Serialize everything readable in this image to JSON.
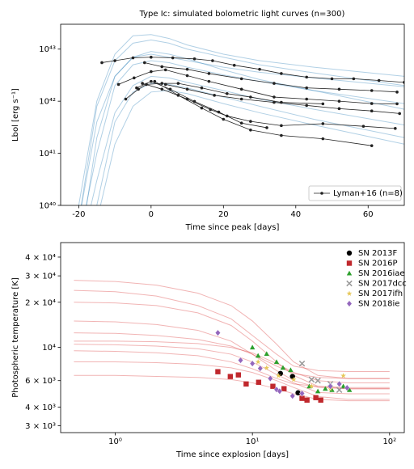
{
  "chart_data": [
    {
      "type": "line",
      "title": "Type Ic: simulated bolometric light curves (n=300)",
      "xlabel": "Time since peak [days]",
      "ylabel": "Lbol [erg s⁻¹]",
      "xlim": [
        -25,
        70
      ],
      "xticks": [
        -20,
        0,
        20,
        40,
        60
      ],
      "ylim": [
        1e+40,
        3e+43
      ],
      "ylog": true,
      "yticks": [
        {
          "value": 1e+40,
          "label": "10⁴⁰"
        },
        {
          "value": 1e+41,
          "label": "10⁴¹"
        },
        {
          "value": 1e+42,
          "label": "10⁴²"
        },
        {
          "value": 1e+43,
          "label": "10⁴³"
        }
      ],
      "legend": "lower right",
      "simulated": {
        "color": "#1f77b4",
        "x": [
          -20,
          -15,
          -10,
          -5,
          0,
          5,
          10,
          20,
          30,
          45,
          70
        ],
        "curves": [
          [
            5e+39,
            8e+41,
            6e+42,
            1.3e+43,
            1.5e+43,
            1.3e+43,
            1e+43,
            7e+42,
            5e+42,
            3.5e+42,
            2e+42
          ],
          [
            2e+39,
            1e+41,
            2e+42,
            5e+42,
            6e+42,
            5.5e+42,
            4.5e+42,
            3.2e+42,
            2.4e+42,
            1.6e+42,
            9e+41
          ],
          [
            1e+39,
            3e+40,
            6e+41,
            2e+42,
            3e+42,
            2.8e+42,
            2.3e+42,
            1.6e+42,
            1.1e+42,
            7e+41,
            3.5e+41
          ],
          [
            1e+38,
            5e+39,
            1.5e+41,
            8e+41,
            1.5e+42,
            1.6e+42,
            1.4e+42,
            9e+41,
            6e+41,
            3.5e+41,
            1.5e+41
          ],
          [
            1e+40,
            1e+42,
            8e+42,
            1.8e+43,
            1.9e+43,
            1.6e+43,
            1.2e+43,
            8e+42,
            6e+42,
            4.5e+42,
            3e+42
          ],
          [
            1e+39,
            2e+41,
            3e+42,
            7e+42,
            8e+42,
            7e+42,
            6e+42,
            4.5e+42,
            3.6e+42,
            2.8e+42,
            1.9e+42
          ],
          [
            1e+38,
            1e+40,
            4e+41,
            1.5e+42,
            2.2e+42,
            2.1e+42,
            1.8e+42,
            1.2e+42,
            8e+41,
            4.5e+41,
            2e+41
          ],
          [
            5e+39,
            4e+41,
            3e+42,
            7e+42,
            9e+42,
            8e+42,
            6.5e+42,
            4e+42,
            2.6e+42,
            1.6e+42,
            7e+41
          ]
        ]
      },
      "observed": {
        "name": "Lyman+16 (n=8)",
        "color": "#222222",
        "curves": [
          {
            "x": [
              -13.6,
              -10,
              -5,
              0,
              6,
              12,
              17,
              23,
              30,
              36,
              43,
              50,
              56,
              63,
              70
            ],
            "y": [
              5.5e+42,
              6e+42,
              6.8e+42,
              7e+42,
              6.8e+42,
              6.5e+42,
              6e+42,
              4.9e+42,
              4.1e+42,
              3.4e+42,
              2.9e+42,
              2.7e+42,
              2.7e+42,
              2.5e+42,
              2.3e+42
            ]
          },
          {
            "x": [
              -1.8,
              3,
              10,
              16,
              25,
              34,
              43,
              52,
              61,
              68
            ],
            "y": [
              5.5e+42,
              4.6e+42,
              4.1e+42,
              3.4e+42,
              2.7e+42,
              2.2e+42,
              1.8e+42,
              1.7e+42,
              1.6e+42,
              1.5e+42
            ]
          },
          {
            "x": [
              -9,
              -4.7,
              0,
              4,
              10,
              16,
              25,
              34,
              43,
              52,
              61,
              68
            ],
            "y": [
              2.1e+42,
              2.8e+42,
              3.7e+42,
              4e+42,
              3.1e+42,
              2.4e+42,
              1.7e+42,
              1.2e+42,
              1.1e+42,
              1e+42,
              9e+41,
              8.9e+41
            ]
          },
          {
            "x": [
              -7,
              -3.5,
              -1.3,
              3,
              7.5,
              14,
              21,
              27.5,
              36,
              47.5
            ],
            "y": [
              1.1e+42,
              1.7e+42,
              2.1e+42,
              2.2e+42,
              2.2e+42,
              1.8e+42,
              1.4e+42,
              1.2e+42,
              9.5e+41,
              8.9e+41
            ]
          },
          {
            "x": [
              -4,
              0,
              5.3,
              12,
              18.7,
              25,
              32
            ],
            "y": [
              1.8e+42,
              2.4e+42,
              1.7e+42,
              9.9e+41,
              6.2e+41,
              3.8e+41,
              3.1e+41
            ]
          },
          {
            "x": [
              -2.4,
              3,
              10,
              16.4,
              21,
              27.5,
              36,
              47.5,
              58.7,
              67.5
            ],
            "y": [
              2.2e+42,
              1.7e+42,
              1.1e+42,
              6.9e+41,
              5.2e+41,
              4.1e+41,
              3.4e+41,
              3.7e+41,
              3.3e+41,
              3e+41
            ]
          },
          {
            "x": [
              1,
              7.5,
              14,
              20,
              27.5,
              36,
              47.5,
              61
            ],
            "y": [
              2.4e+42,
              1.3e+42,
              7.4e+41,
              4.5e+41,
              2.8e+41,
              2.2e+41,
              1.9e+41,
              1.4e+41
            ]
          },
          {
            "x": [
              4,
              10,
              17.5,
              25,
              34,
              43,
              52,
              61,
              68.7
            ],
            "y": [
              2.1e+42,
              1.7e+42,
              1.3e+42,
              1.1e+42,
              9.5e+41,
              8.3e+41,
              7.2e+41,
              6.5e+41,
              5.8e+41
            ]
          }
        ]
      }
    },
    {
      "type": "scatter",
      "xlabel": "Time since explosion [days]",
      "ylabel": "Photospheric temperature [K]",
      "xlim": [
        0.4,
        128
      ],
      "xlog": true,
      "xticks": [
        {
          "value": 1,
          "label": "10⁰"
        },
        {
          "value": 10,
          "label": "10¹"
        },
        {
          "value": 100,
          "label": "10²"
        }
      ],
      "ylim": [
        2700,
        50000
      ],
      "ylog": true,
      "yticks": [
        {
          "value": 3000,
          "label": "3 × 10³"
        },
        {
          "value": 4000,
          "label": "4 × 10³"
        },
        {
          "value": 6000,
          "label": "6 × 10³"
        },
        {
          "value": 10000,
          "label": "10⁴"
        },
        {
          "value": 20000,
          "label": "2 × 10⁴"
        },
        {
          "value": 30000,
          "label": "3 × 10⁴"
        },
        {
          "value": 40000,
          "label": "4 × 10⁴"
        }
      ],
      "legend": "upper right",
      "simulated": {
        "color": "#d62728",
        "x": [
          0.5,
          1,
          2,
          4,
          7,
          10,
          15,
          20,
          30,
          50,
          100
        ],
        "curves": [
          [
            28000,
            27500,
            26000,
            23000,
            19000,
            15000,
            10500,
            8000,
            6500,
            6200,
            6200
          ],
          [
            20000,
            19800,
            19000,
            17000,
            14000,
            11000,
            8000,
            6500,
            5500,
            5300,
            5300
          ],
          [
            11000,
            11000,
            10900,
            10600,
            10000,
            9200,
            7800,
            6800,
            6000,
            5800,
            5800
          ],
          [
            10500,
            10400,
            10200,
            9800,
            9000,
            8000,
            6600,
            5800,
            5000,
            4900,
            4900
          ],
          [
            15000,
            14800,
            14200,
            13000,
            11000,
            9000,
            7000,
            6000,
            5400,
            5300,
            5300
          ],
          [
            8000,
            8000,
            7900,
            7700,
            7300,
            6800,
            6000,
            5400,
            4700,
            4500,
            4500
          ],
          [
            6500,
            6500,
            6400,
            6300,
            6100,
            5800,
            5300,
            4900,
            4500,
            4400,
            4400
          ],
          [
            24000,
            23500,
            22000,
            19000,
            15500,
            12000,
            9000,
            7500,
            7000,
            6900,
            6900
          ],
          [
            12500,
            12400,
            12000,
            11300,
            10200,
            9000,
            7500,
            6700,
            6300,
            6200,
            6200
          ],
          [
            9500,
            9400,
            9200,
            8800,
            8000,
            7200,
            6200,
            5700,
            5500,
            5400,
            5400
          ]
        ]
      },
      "series": [
        {
          "name": "SN 2013F",
          "color": "#000000",
          "marker": "circle",
          "x": [
            16,
            19.6,
            21.5
          ],
          "y": [
            6700,
            6400,
            4980
          ]
        },
        {
          "name": "SN 2016P",
          "color": "#c0282d",
          "marker": "square",
          "x": [
            5.6,
            6.9,
            7.9,
            9,
            11.1,
            14.1,
            17,
            23,
            25,
            29,
            31.5
          ],
          "y": [
            6880,
            6390,
            6550,
            5700,
            5850,
            5500,
            5300,
            4570,
            4450,
            4620,
            4450
          ]
        },
        {
          "name": "SN 2016iae",
          "color": "#2ca02c",
          "marker": "triangle",
          "x": [
            10,
            11,
            12.7,
            15,
            16.7,
            19,
            26,
            30,
            34,
            38,
            46,
            51
          ],
          "y": [
            10000,
            8800,
            9050,
            8000,
            7320,
            7060,
            5500,
            5100,
            5300,
            5200,
            5500,
            5200
          ]
        },
        {
          "name": "SN 2017dcc",
          "color": "#999999",
          "marker": "x",
          "x": [
            23,
            27,
            30,
            37,
            43
          ],
          "y": [
            7800,
            6100,
            6000,
            5700,
            5200
          ]
        },
        {
          "name": "SN 2017ifh",
          "color": "#e6c85a",
          "marker": "star",
          "x": [
            11,
            12.7,
            15.5,
            20,
            27,
            37,
            46
          ],
          "y": [
            8000,
            7300,
            6470,
            6100,
            5500,
            5300,
            6470
          ]
        },
        {
          "name": "SN 2018ie",
          "color": "#9467bd",
          "marker": "diamond",
          "x": [
            5.6,
            8.2,
            10,
            11.4,
            13.5,
            15,
            15.8,
            19.6,
            23,
            37,
            43,
            49
          ],
          "y": [
            12500,
            8200,
            7800,
            7240,
            6200,
            5230,
            5100,
            4740,
            4930,
            5500,
            5700,
            5370
          ]
        }
      ]
    }
  ]
}
